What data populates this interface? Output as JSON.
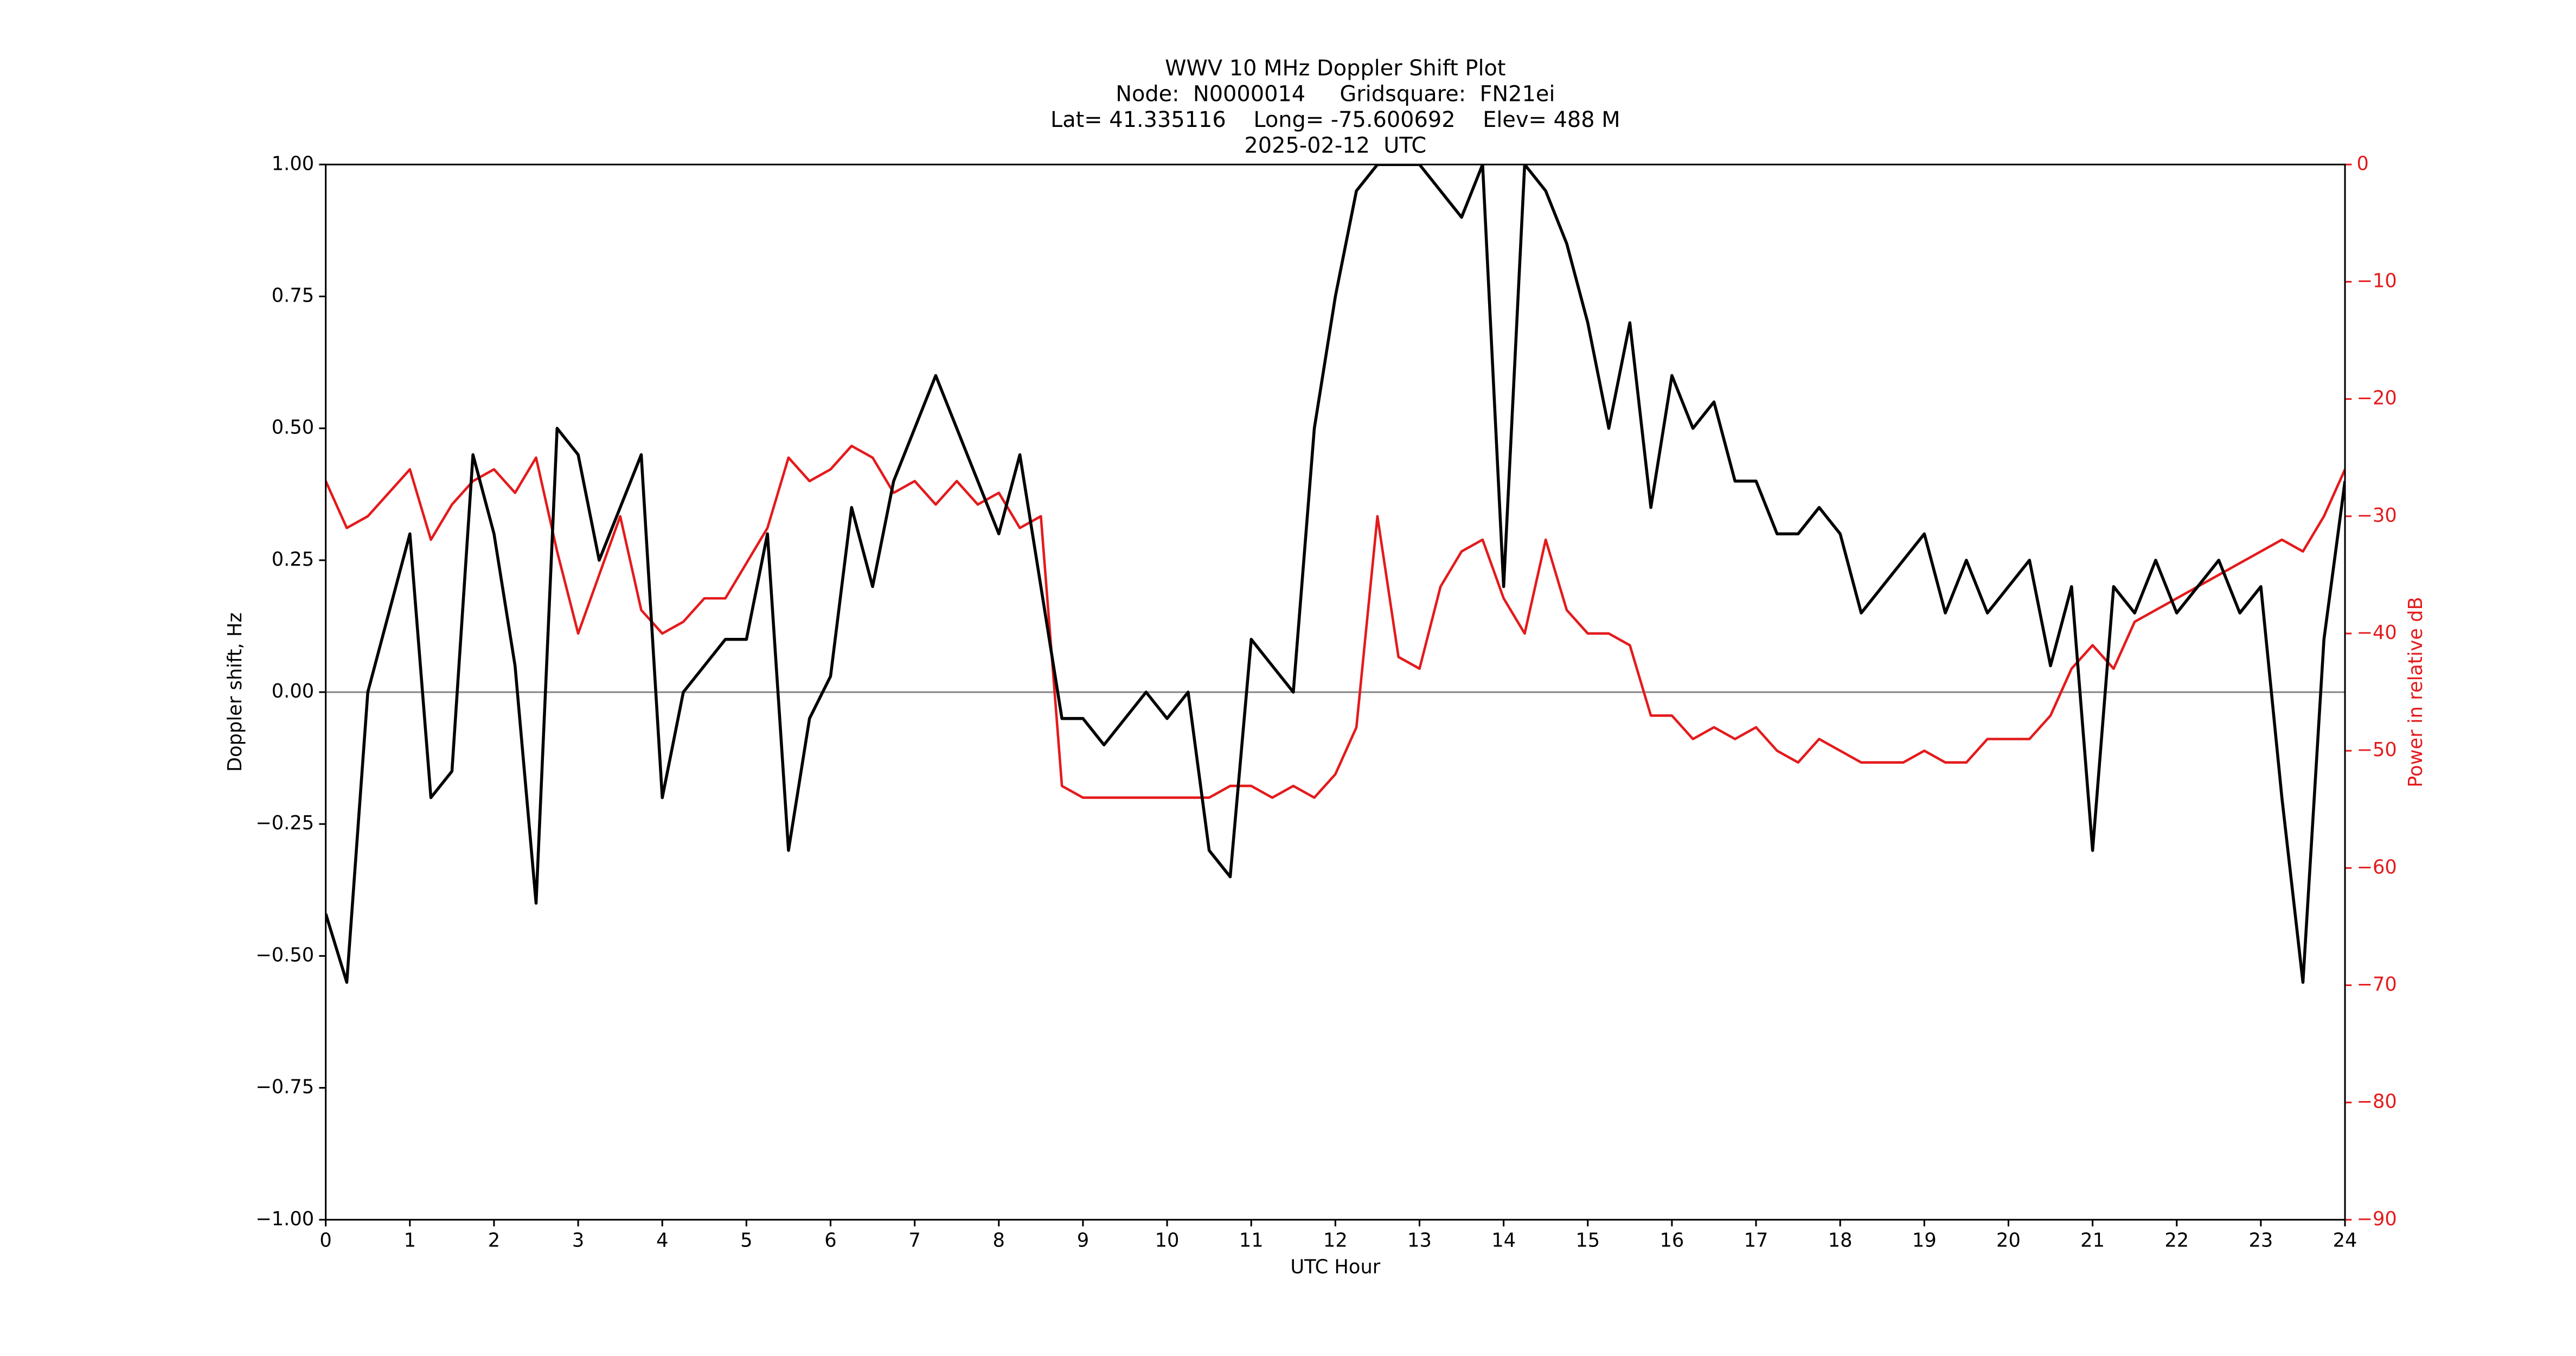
{
  "chart_data": {
    "type": "line",
    "title": [
      "WWV 10 MHz Doppler Shift Plot",
      "Node:  N0000014     Gridsquare:  FN21ei",
      "Lat= 41.335116    Long= -75.600692    Elev= 488 M",
      "2025-02-12  UTC"
    ],
    "x_label": "UTC Hour",
    "y_label": "Doppler shift, Hz",
    "y2_label": "Power in relative dB",
    "xlim": [
      0,
      24
    ],
    "xticks": [
      0,
      1,
      2,
      3,
      4,
      5,
      6,
      7,
      8,
      9,
      10,
      11,
      12,
      13,
      14,
      15,
      16,
      17,
      18,
      19,
      20,
      21,
      22,
      23,
      24
    ],
    "ylim": [
      -1,
      1
    ],
    "yticks": [
      {
        "value": -1,
        "label": "−1.00"
      },
      {
        "value": -0.75,
        "label": "−0.75"
      },
      {
        "value": -0.5,
        "label": "−0.50"
      },
      {
        "value": -0.25,
        "label": "−0.25"
      },
      {
        "value": 0,
        "label": "0.00"
      },
      {
        "value": 0.25,
        "label": "0.25"
      },
      {
        "value": 0.5,
        "label": "0.50"
      },
      {
        "value": 0.75,
        "label": "0.75"
      },
      {
        "value": 1,
        "label": "1.00"
      }
    ],
    "y2lim": [
      -90,
      0
    ],
    "y2ticks": [
      {
        "value": -90,
        "label": "−90"
      },
      {
        "value": -80,
        "label": "−80"
      },
      {
        "value": -70,
        "label": "−70"
      },
      {
        "value": -60,
        "label": "−60"
      },
      {
        "value": -50,
        "label": "−50"
      },
      {
        "value": -40,
        "label": "−40"
      },
      {
        "value": -30,
        "label": "−30"
      },
      {
        "value": -20,
        "label": "−20"
      },
      {
        "value": -10,
        "label": "−10"
      },
      0
    ],
    "y2_color": "#e41a1c",
    "reference_line": 0,
    "x": [
      0,
      0.25,
      0.5,
      0.75,
      1,
      1.25,
      1.5,
      1.75,
      2,
      2.25,
      2.5,
      2.75,
      3,
      3.25,
      3.5,
      3.75,
      4,
      4.25,
      4.5,
      4.75,
      5,
      5.25,
      5.5,
      5.75,
      6,
      6.25,
      6.5,
      6.75,
      7,
      7.25,
      7.5,
      7.75,
      8,
      8.25,
      8.5,
      8.75,
      9,
      9.25,
      9.5,
      9.75,
      10,
      10.25,
      10.5,
      10.75,
      11,
      11.25,
      11.5,
      11.75,
      12,
      12.25,
      12.5,
      12.75,
      13,
      13.25,
      13.5,
      13.75,
      14,
      14.25,
      14.5,
      14.75,
      15,
      15.25,
      15.5,
      15.75,
      16,
      16.25,
      16.5,
      16.75,
      17,
      17.25,
      17.5,
      17.75,
      18,
      18.25,
      18.5,
      18.75,
      19,
      19.25,
      19.5,
      19.75,
      20,
      20.25,
      20.5,
      20.75,
      21,
      21.25,
      21.5,
      21.75,
      22,
      22.25,
      22.5,
      22.75,
      23,
      23.25,
      23.5,
      23.75,
      24
    ],
    "series": [
      {
        "color": "#000000",
        "values": [
          -0.42,
          -0.55,
          0.0,
          0.15,
          0.3,
          -0.2,
          -0.15,
          0.45,
          0.3,
          0.05,
          -0.4,
          0.5,
          0.45,
          0.25,
          0.35,
          0.45,
          -0.2,
          0.0,
          0.05,
          0.1,
          0.1,
          0.3,
          -0.3,
          -0.05,
          0.03,
          0.35,
          0.2,
          0.4,
          0.5,
          0.6,
          0.5,
          0.4,
          0.3,
          0.45,
          0.2,
          -0.05,
          -0.05,
          -0.1,
          -0.05,
          0.0,
          -0.05,
          0.0,
          -0.3,
          -0.35,
          0.1,
          0.05,
          0.0,
          0.5,
          0.75,
          0.95,
          1.0,
          1.0,
          1.0,
          0.95,
          0.9,
          1.0,
          0.2,
          1.0,
          0.95,
          0.85,
          0.7,
          0.5,
          0.7,
          0.35,
          0.6,
          0.5,
          0.55,
          0.4,
          0.4,
          0.3,
          0.3,
          0.35,
          0.3,
          0.15,
          0.2,
          0.25,
          0.3,
          0.15,
          0.25,
          0.15,
          0.2,
          0.25,
          0.05,
          0.2,
          -0.3,
          0.2,
          0.15,
          0.25,
          0.15,
          0.2,
          0.25,
          0.15,
          0.2,
          -0.2,
          -0.55,
          0.1,
          0.4
        ]
      },
      {
        "color": "#e41a1c",
        "axis": "y2",
        "values": [
          -27,
          -31,
          -30,
          -28,
          -26,
          -32,
          -29,
          -27,
          -26,
          -28,
          -25,
          -33,
          -40,
          -35,
          -30,
          -38,
          -40,
          -39,
          -37,
          -37,
          -34,
          -31,
          -25,
          -27,
          -26,
          -24,
          -25,
          -28,
          -27,
          -29,
          -27,
          -29,
          -28,
          -31,
          -30,
          -53,
          -54,
          -54,
          -54,
          -54,
          -54,
          -54,
          -54,
          -53,
          -53,
          -54,
          -53,
          -54,
          -52,
          -48,
          -30,
          -42,
          -43,
          -36,
          -33,
          -32,
          -37,
          -40,
          -32,
          -38,
          -40,
          -40,
          -41,
          -47,
          -47,
          -49,
          -48,
          -49,
          -48,
          -50,
          -51,
          -49,
          -50,
          -51,
          -51,
          -51,
          -50,
          -51,
          -51,
          -49,
          -49,
          -49,
          -47,
          -43,
          -41,
          -43,
          -39,
          -38,
          -37,
          -36,
          -35,
          -34,
          -33,
          -32,
          -33,
          -30,
          -26
        ]
      }
    ]
  }
}
